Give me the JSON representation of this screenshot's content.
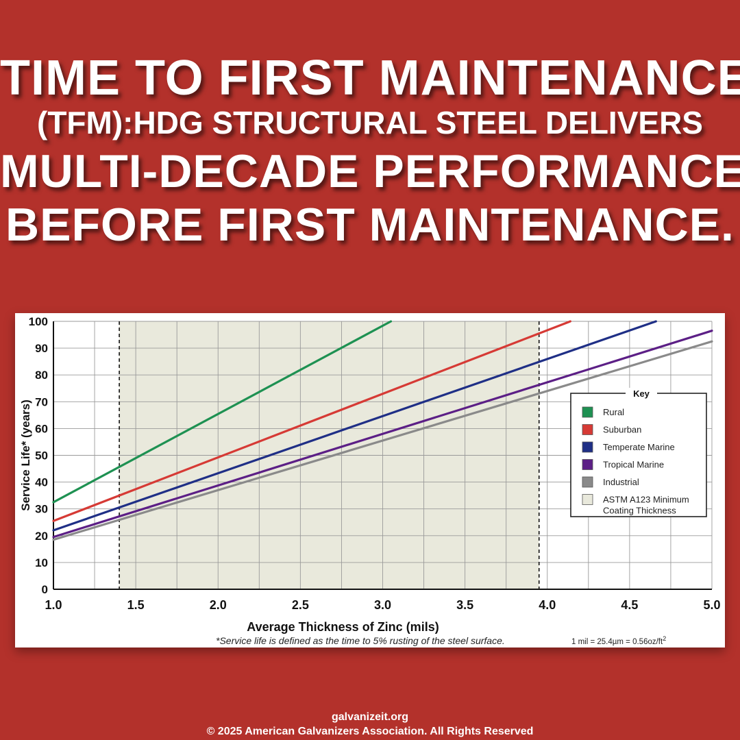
{
  "headline": {
    "line1": "TIME TO FIRST MAINTENANCE",
    "line2": "(TFM):HDG STRUCTURAL STEEL DELIVERS",
    "line3": "MULTI-DECADE PERFORMANCE",
    "line4": "BEFORE FIRST MAINTENANCE."
  },
  "chart_data": {
    "type": "line",
    "xlabel": "Average Thickness of Zinc (mils)",
    "ylabel": "Service Life* (years)",
    "xlim": [
      1.0,
      5.0
    ],
    "ylim": [
      0,
      100
    ],
    "x_ticks": [
      "1.0",
      "1.5",
      "2.0",
      "2.5",
      "3.0",
      "3.5",
      "4.0",
      "4.5",
      "5.0"
    ],
    "y_ticks": [
      "0",
      "10",
      "20",
      "30",
      "40",
      "50",
      "60",
      "70",
      "80",
      "90",
      "100"
    ],
    "grid": true,
    "shaded_region": {
      "name": "ASTM A123 Minimum Coating Thickness",
      "x": [
        1.4,
        3.95
      ],
      "color": "#e9e9dc"
    },
    "series": [
      {
        "name": "Rural",
        "color": "#1e9152",
        "x": [
          1.0,
          3.05
        ],
        "y": [
          32.5,
          100
        ]
      },
      {
        "name": "Suburban",
        "color": "#d63a35",
        "x": [
          1.0,
          4.14
        ],
        "y": [
          25.5,
          100
        ]
      },
      {
        "name": "Temperate Marine",
        "color": "#1f2f86",
        "x": [
          1.0,
          4.66
        ],
        "y": [
          22,
          100
        ]
      },
      {
        "name": "Tropical Marine",
        "color": "#5c1f86",
        "x": [
          1.0,
          5.0
        ],
        "y": [
          19.5,
          96.5
        ]
      },
      {
        "name": "Industrial",
        "color": "#8a8a8a",
        "x": [
          1.0,
          5.0
        ],
        "y": [
          18.5,
          92.5
        ]
      }
    ],
    "legend": {
      "title": "Key",
      "position": "right",
      "items": [
        {
          "label": "Rural",
          "color": "#1e9152"
        },
        {
          "label": "Suburban",
          "color": "#d63a35"
        },
        {
          "label": "Temperate Marine",
          "color": "#1f2f86"
        },
        {
          "label": "Tropical Marine",
          "color": "#5c1f86"
        },
        {
          "label": "Industrial",
          "color": "#8a8a8a"
        },
        {
          "label": "ASTM A123 Minimum",
          "label2": "Coating Thickness",
          "color": "#e9e9dc"
        }
      ]
    },
    "footnote": "*Service life is defined as the time to 5% rusting of the steel surface.",
    "conversion": "1 mil = 25.4µm = 0.56oz/ft",
    "conversion_sup": "2"
  },
  "footer": {
    "site": "galvanizeit.org",
    "copyright": "© 2025 American Galvanizers Association. All Rights Reserved"
  },
  "colors": {
    "background": "#b3312b",
    "headline": "#ffffff"
  }
}
